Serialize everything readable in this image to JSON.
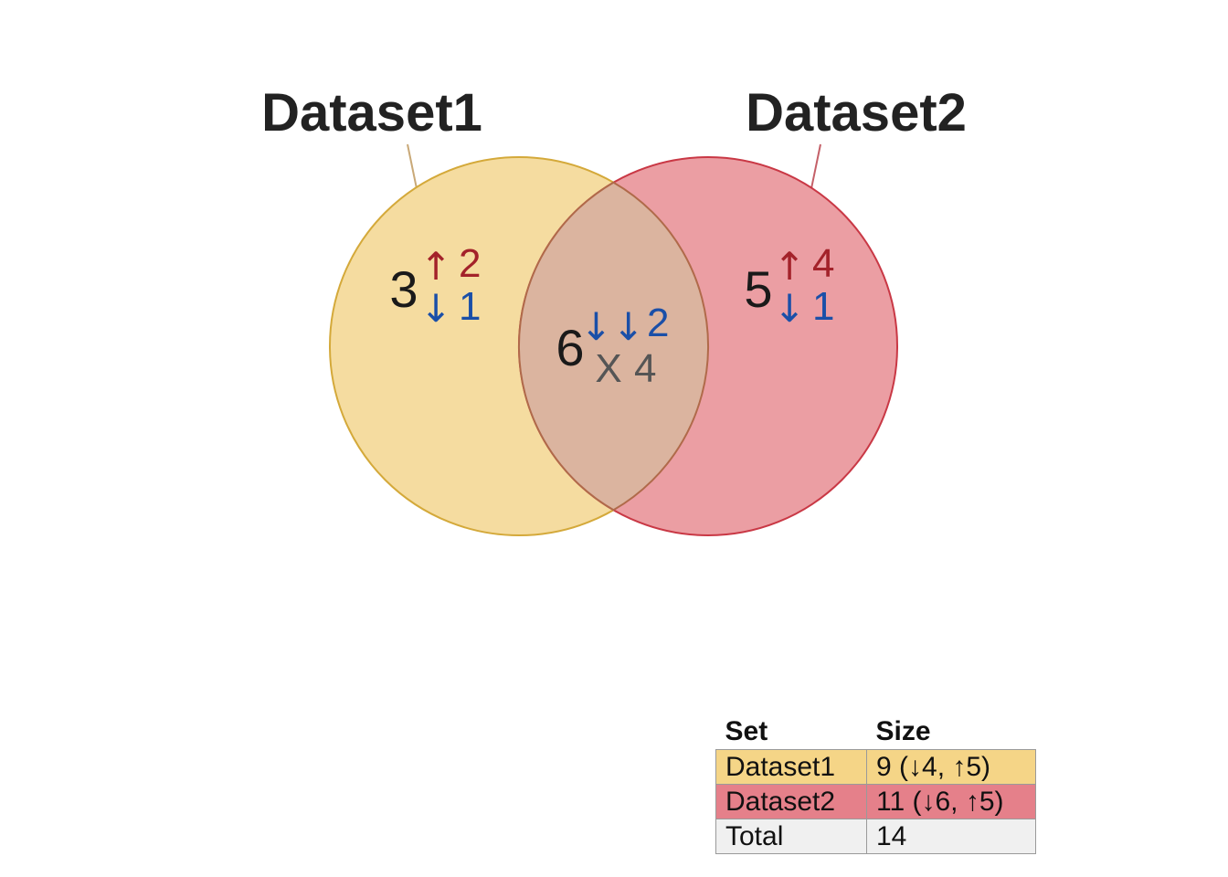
{
  "venn": {
    "sets": [
      {
        "name": "Dataset1",
        "fill": "#f5dca0",
        "stroke": "#d4a93a",
        "leader": "#c9a978",
        "exclusive": {
          "total": "3",
          "up": "2",
          "down": "1"
        }
      },
      {
        "name": "Dataset2",
        "fill": "#eb9ea3",
        "stroke": "#c93845",
        "leader": "#c46068",
        "exclusive": {
          "total": "5",
          "up": "4",
          "down": "1"
        }
      }
    ],
    "intersection": {
      "total": "6",
      "down_down": "2",
      "mixed": "4",
      "fill": "#dbb49f",
      "stroke": "#b06a4a"
    },
    "symbols": {
      "up": "↑",
      "down": "↓",
      "down_down": "↓↓",
      "mixed": "X"
    },
    "colors": {
      "up": "#a3222a",
      "down": "#1a4fa8",
      "mixed": "#555555",
      "count": "#1a1a1a"
    }
  },
  "table": {
    "headers": {
      "set": "Set",
      "size": "Size"
    },
    "rows": [
      {
        "set": "Dataset1",
        "size": "9 (↓4, ↑5)",
        "color": "#f5d587"
      },
      {
        "set": "Dataset2",
        "size": "11 (↓6, ↑5)",
        "color": "#e5808a"
      },
      {
        "set": "Total",
        "size": "14",
        "color": "#f0f0f0"
      }
    ]
  }
}
